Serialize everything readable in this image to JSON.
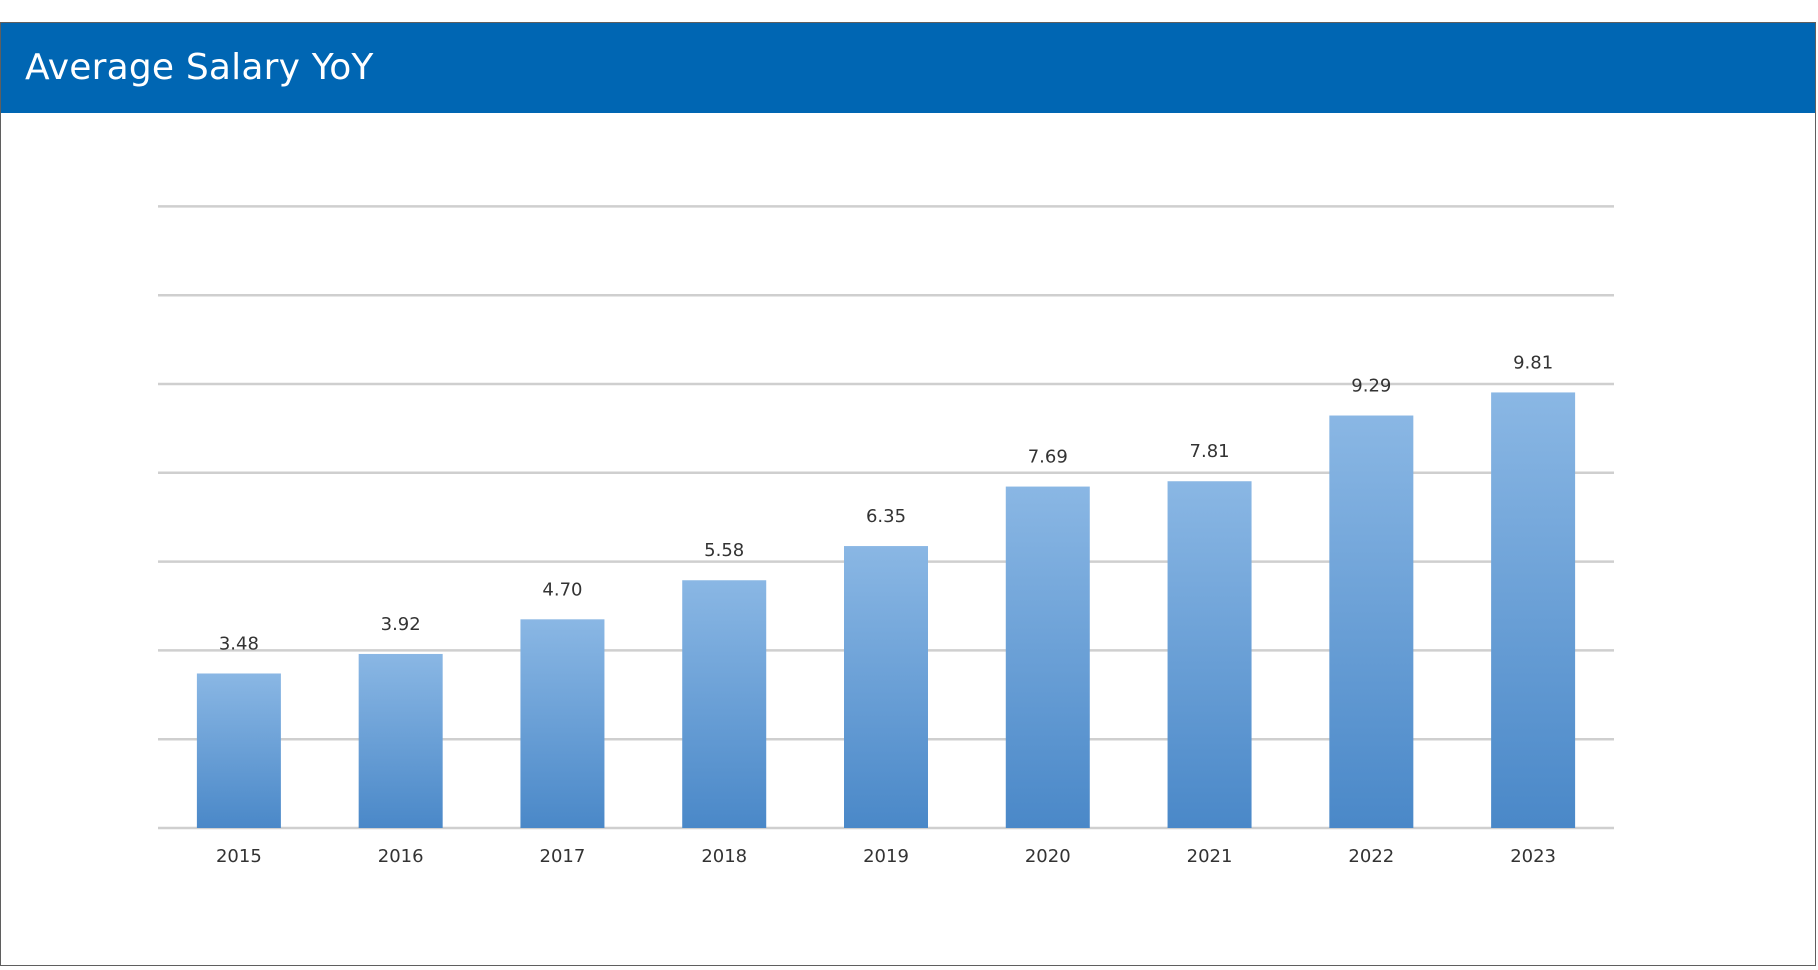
{
  "header": {
    "title": "Average Salary YoY"
  },
  "colors": {
    "header_bg": "#0066b3",
    "bar_top": "#8ab7e4",
    "bar_bottom": "#4a88c8",
    "gridline": "#cfcfcf"
  },
  "chart_data": {
    "type": "bar",
    "title": "Average Salary YoY",
    "xlabel": "",
    "ylabel": "",
    "categories": [
      "2015",
      "2016",
      "2017",
      "2018",
      "2019",
      "2020",
      "2021",
      "2022",
      "2023"
    ],
    "values": [
      3.48,
      3.92,
      4.7,
      5.58,
      6.35,
      7.69,
      7.81,
      9.29,
      9.81
    ],
    "value_labels": [
      "3.48",
      "3.92",
      "4.70",
      "5.58",
      "6.35",
      "7.69",
      "7.81",
      "9.29",
      "9.81"
    ],
    "ylim": [
      0,
      14
    ],
    "grid": true,
    "y_tick_labels_shown": false,
    "legend": "none"
  }
}
